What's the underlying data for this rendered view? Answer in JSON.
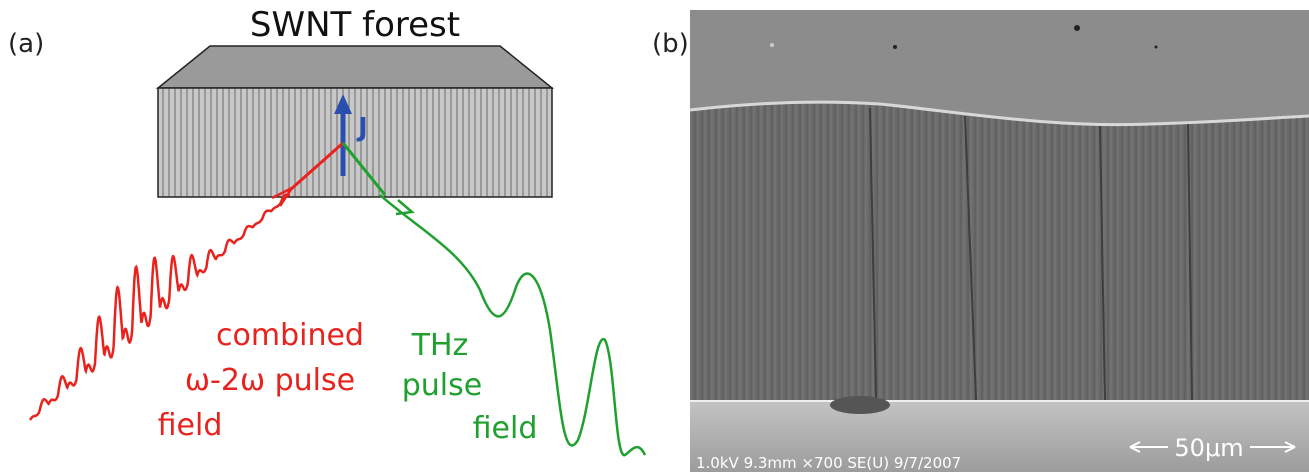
{
  "panel_a": {
    "label": "(a)",
    "title": "SWNT forest",
    "current": "J",
    "pump_label": [
      "combined",
      "ω-2ω pulse",
      "field"
    ],
    "thz_label": [
      "THz",
      "pulse",
      "field"
    ]
  },
  "panel_b": {
    "label": "(b)",
    "sem_info": "1.0kV 9.3mm ×700 SE(U) 9/7/2007",
    "scale_bar": "50μm"
  }
}
